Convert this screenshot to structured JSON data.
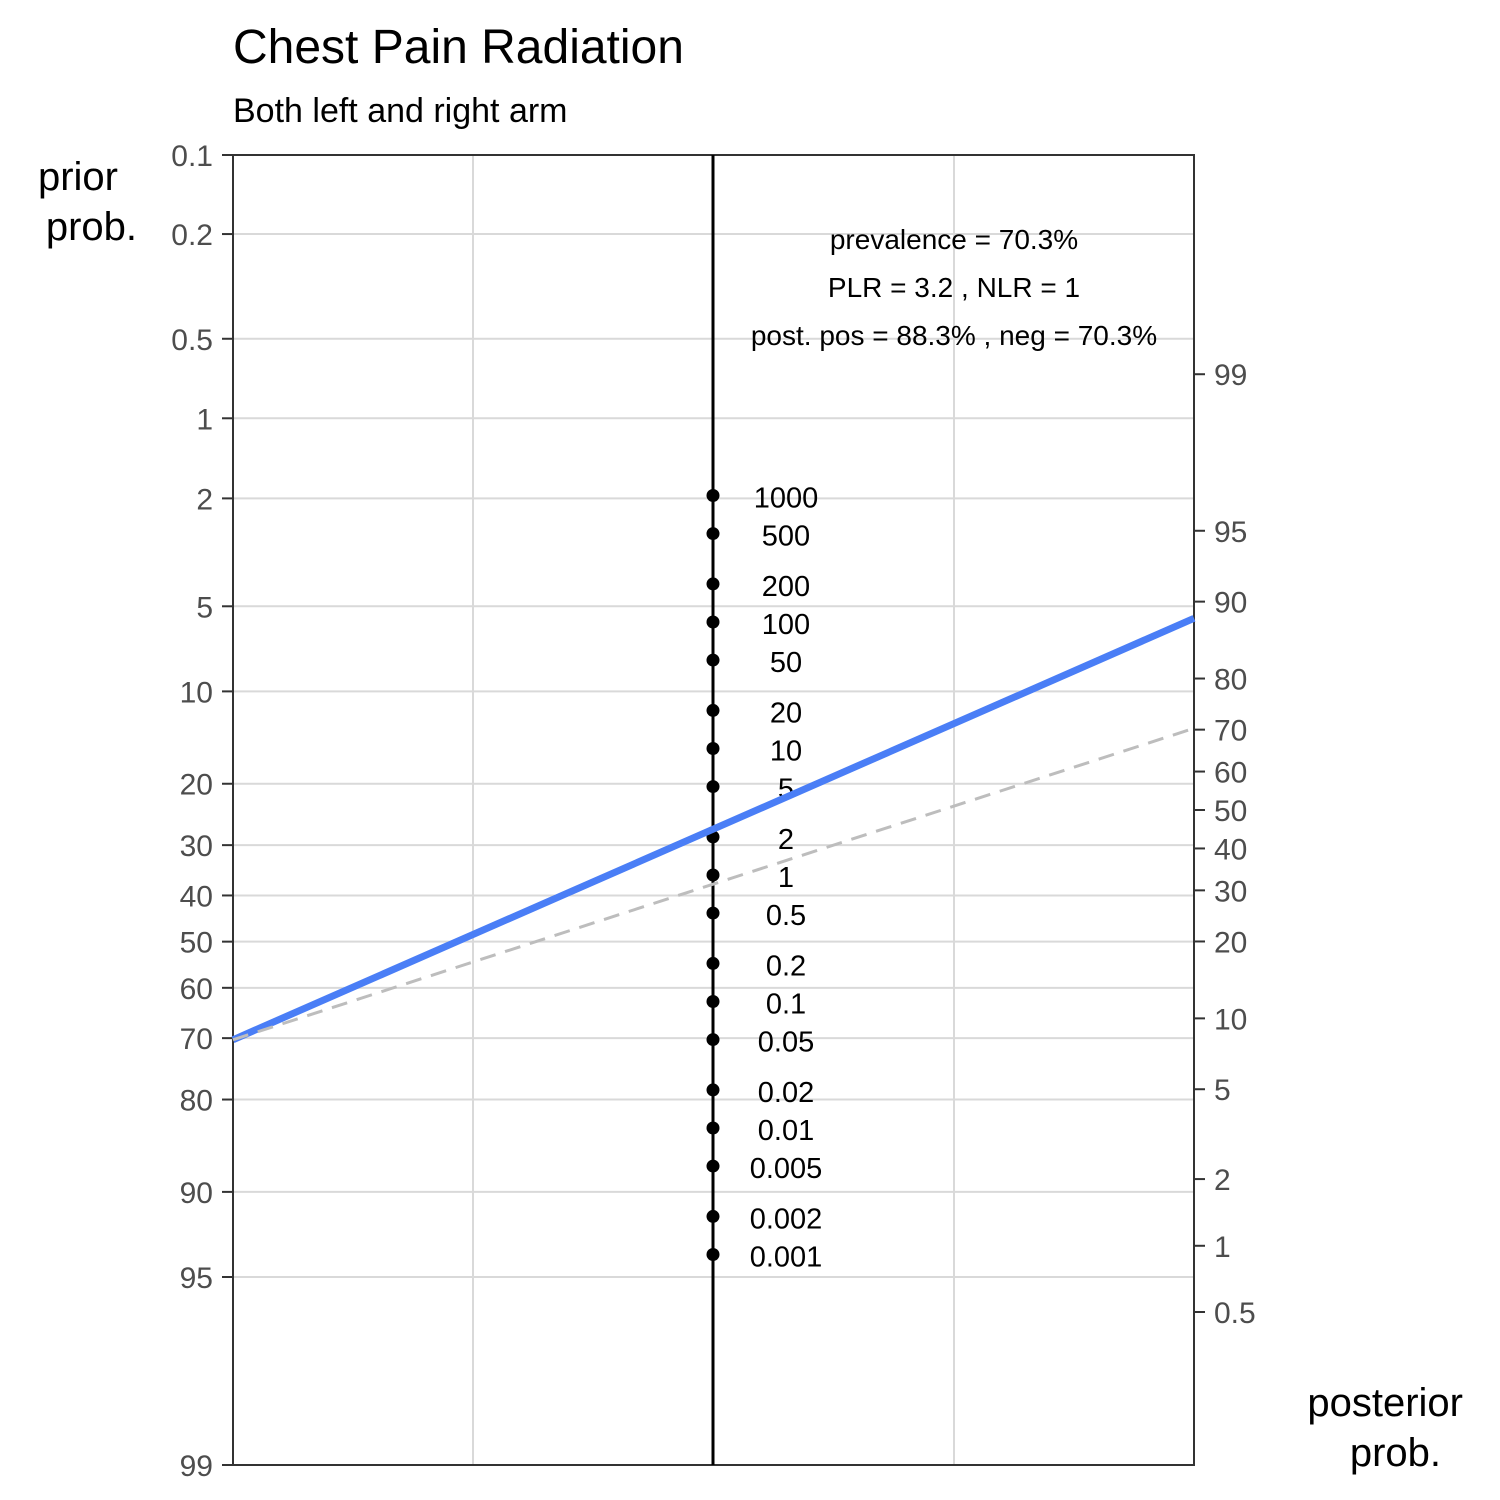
{
  "chart_data": {
    "type": "line",
    "title": "Chest Pain Radiation",
    "subtitle": "Both left and right arm",
    "left_axis": {
      "title_lines": [
        "prior",
        "prob."
      ],
      "ticks": [
        0.1,
        0.2,
        0.5,
        1,
        2,
        5,
        10,
        20,
        30,
        40,
        50,
        60,
        70,
        80,
        90,
        95,
        99
      ]
    },
    "right_axis": {
      "title_lines": [
        "posterior",
        "prob."
      ],
      "ticks": [
        99,
        95,
        90,
        80,
        70,
        60,
        50,
        40,
        30,
        20,
        10,
        5,
        2,
        1,
        0.5
      ]
    },
    "likelihood_ratio_scale": {
      "ticks": [
        "1000",
        "500",
        "200",
        "100",
        "50",
        "20",
        "10",
        "5",
        "2",
        "1",
        "0.5",
        "0.2",
        "0.1",
        "0.05",
        "0.02",
        "0.01",
        "0.005",
        "0.002",
        "0.001"
      ]
    },
    "annotations": [
      "prevalence = 70.3%",
      "PLR = 3.2 , NLR = 1",
      "post. pos = 88.3% , neg = 70.3%"
    ],
    "series": [
      {
        "style": "solid",
        "color": "#4a7ef6",
        "prior": 70.3,
        "posterior": 88.3
      },
      {
        "style": "dashed",
        "color": "#bdbdbd",
        "prior": 70.3,
        "posterior": 70.3
      }
    ],
    "grid": true
  }
}
